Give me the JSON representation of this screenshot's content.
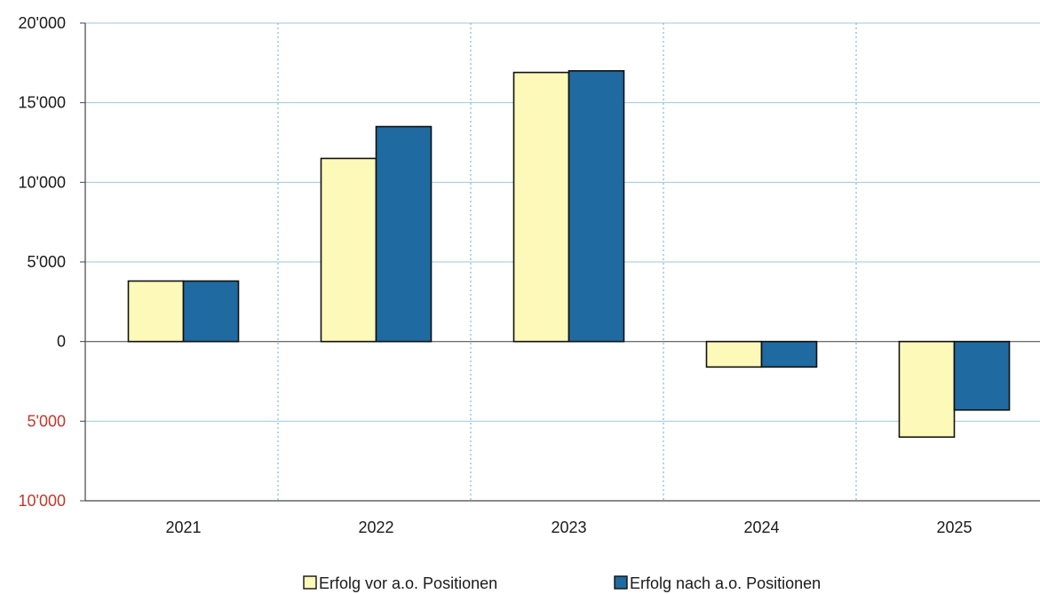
{
  "chart_data": {
    "type": "bar",
    "categories": [
      "2021",
      "2022",
      "2023",
      "2024",
      "2025"
    ],
    "series": [
      {
        "name": "Erfolg vor a.o. Positionen",
        "values": [
          3800,
          11500,
          16900,
          -1600,
          -6000
        ],
        "color": "#fdf9b8"
      },
      {
        "name": "Erfolg nach a.o. Positionen",
        "values": [
          3800,
          13500,
          17000,
          -1600,
          -4300
        ],
        "color": "#1f6aa0"
      }
    ],
    "y_ticks": [
      {
        "value": 20000,
        "label": "20'000",
        "color": "#1a1a1a"
      },
      {
        "value": 15000,
        "label": "15'000",
        "color": "#1a1a1a"
      },
      {
        "value": 10000,
        "label": "10'000",
        "color": "#1a1a1a"
      },
      {
        "value": 5000,
        "label": "5'000",
        "color": "#1a1a1a"
      },
      {
        "value": 0,
        "label": "0",
        "color": "#1a1a1a"
      },
      {
        "value": -5000,
        "label": "5'000",
        "color": "#c0392b"
      },
      {
        "value": -10000,
        "label": "10'000",
        "color": "#c0392b"
      }
    ],
    "ylim": [
      -10000,
      20000
    ],
    "grid": true,
    "legend_position": "bottom-center"
  }
}
